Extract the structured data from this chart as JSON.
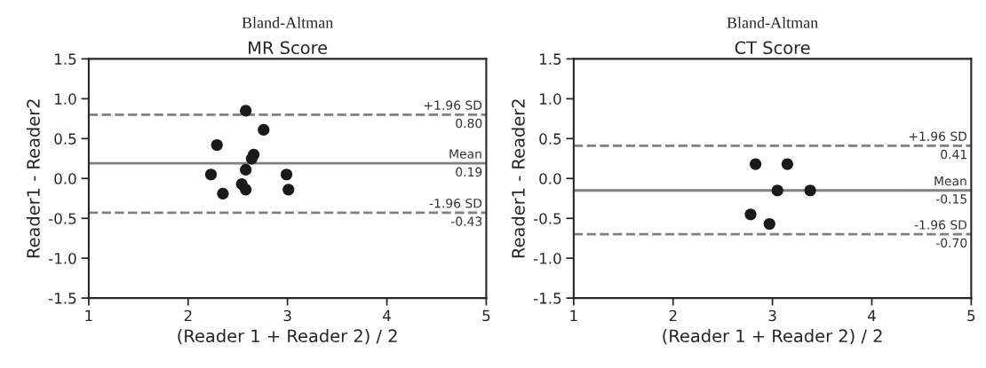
{
  "chart_data": [
    {
      "type": "scatter",
      "title": "Bland-Altman",
      "subtitle": "MR Score",
      "xlabel": "(Reader 1 + Reader 2) / 2",
      "ylabel": "Reader1 - Reader2",
      "x": [
        2.58,
        2.76,
        2.29,
        2.66,
        2.64,
        2.58,
        2.23,
        2.99,
        2.54,
        2.58,
        2.35,
        3.01
      ],
      "values": [
        0.85,
        0.61,
        0.42,
        0.3,
        0.25,
        0.11,
        0.05,
        0.05,
        -0.07,
        -0.14,
        -0.19,
        -0.14
      ],
      "color": "#1a1a1a",
      "marker": "circle",
      "xlim": [
        1,
        5
      ],
      "xticks": [
        1,
        2,
        3,
        4,
        5
      ],
      "ylim": [
        -1.5,
        1.5
      ],
      "yticks": [
        -1.5,
        {
          "value": -1,
          "label": "-1.0"
        },
        -0.5,
        {
          "value": 0,
          "label": "0.0"
        },
        0.5,
        {
          "value": 1,
          "label": "1.0"
        },
        1.5
      ],
      "annotations": [
        {
          "text": "0.80",
          "y": 0.8
        },
        {
          "text": "0.19",
          "y": 0.19
        },
        {
          "text": "-0.43",
          "y": -0.43
        }
      ],
      "ref_lines": [
        {
          "axis": "y",
          "value": 0.8,
          "label": "+1.96 SD",
          "color": "#808080",
          "line_style": "dashed"
        },
        {
          "axis": "y",
          "value": 0.19,
          "label": "Mean",
          "color": "#808080",
          "line_style": "solid"
        },
        {
          "axis": "y",
          "value": -0.43,
          "label": "-1.96 SD",
          "color": "#808080",
          "line_style": "dashed"
        }
      ]
    },
    {
      "type": "scatter",
      "title": "Bland-Altman",
      "subtitle": "CT Score",
      "xlabel": "(Reader 1 + Reader 2) / 2",
      "ylabel": "Reader1 - Reader2",
      "x": [
        2.83,
        3.15,
        3.05,
        3.38,
        2.78,
        2.97
      ],
      "values": [
        0.18,
        0.18,
        -0.15,
        -0.15,
        -0.45,
        -0.57
      ],
      "color": "#1a1a1a",
      "marker": "circle",
      "xlim": [
        1,
        5
      ],
      "xticks": [
        1,
        2,
        3,
        4,
        5
      ],
      "ylim": [
        -1.5,
        1.5
      ],
      "yticks": [
        -1.5,
        {
          "value": -1,
          "label": "-1.0"
        },
        -0.5,
        {
          "value": 0,
          "label": "0.0"
        },
        0.5,
        {
          "value": 1,
          "label": "1.0"
        },
        1.5
      ],
      "annotations": [
        {
          "text": "0.41",
          "y": 0.41
        },
        {
          "text": "-0.15",
          "y": -0.15
        },
        {
          "text": "-0.70",
          "y": -0.7
        }
      ],
      "ref_lines": [
        {
          "axis": "y",
          "value": 0.41,
          "label": "+1.96 SD",
          "color": "#808080",
          "line_style": "dashed"
        },
        {
          "axis": "y",
          "value": -0.15,
          "label": "Mean",
          "color": "#808080",
          "line_style": "solid"
        },
        {
          "axis": "y",
          "value": -0.7,
          "label": "-1.96 SD",
          "color": "#808080",
          "line_style": "dashed"
        }
      ]
    }
  ]
}
